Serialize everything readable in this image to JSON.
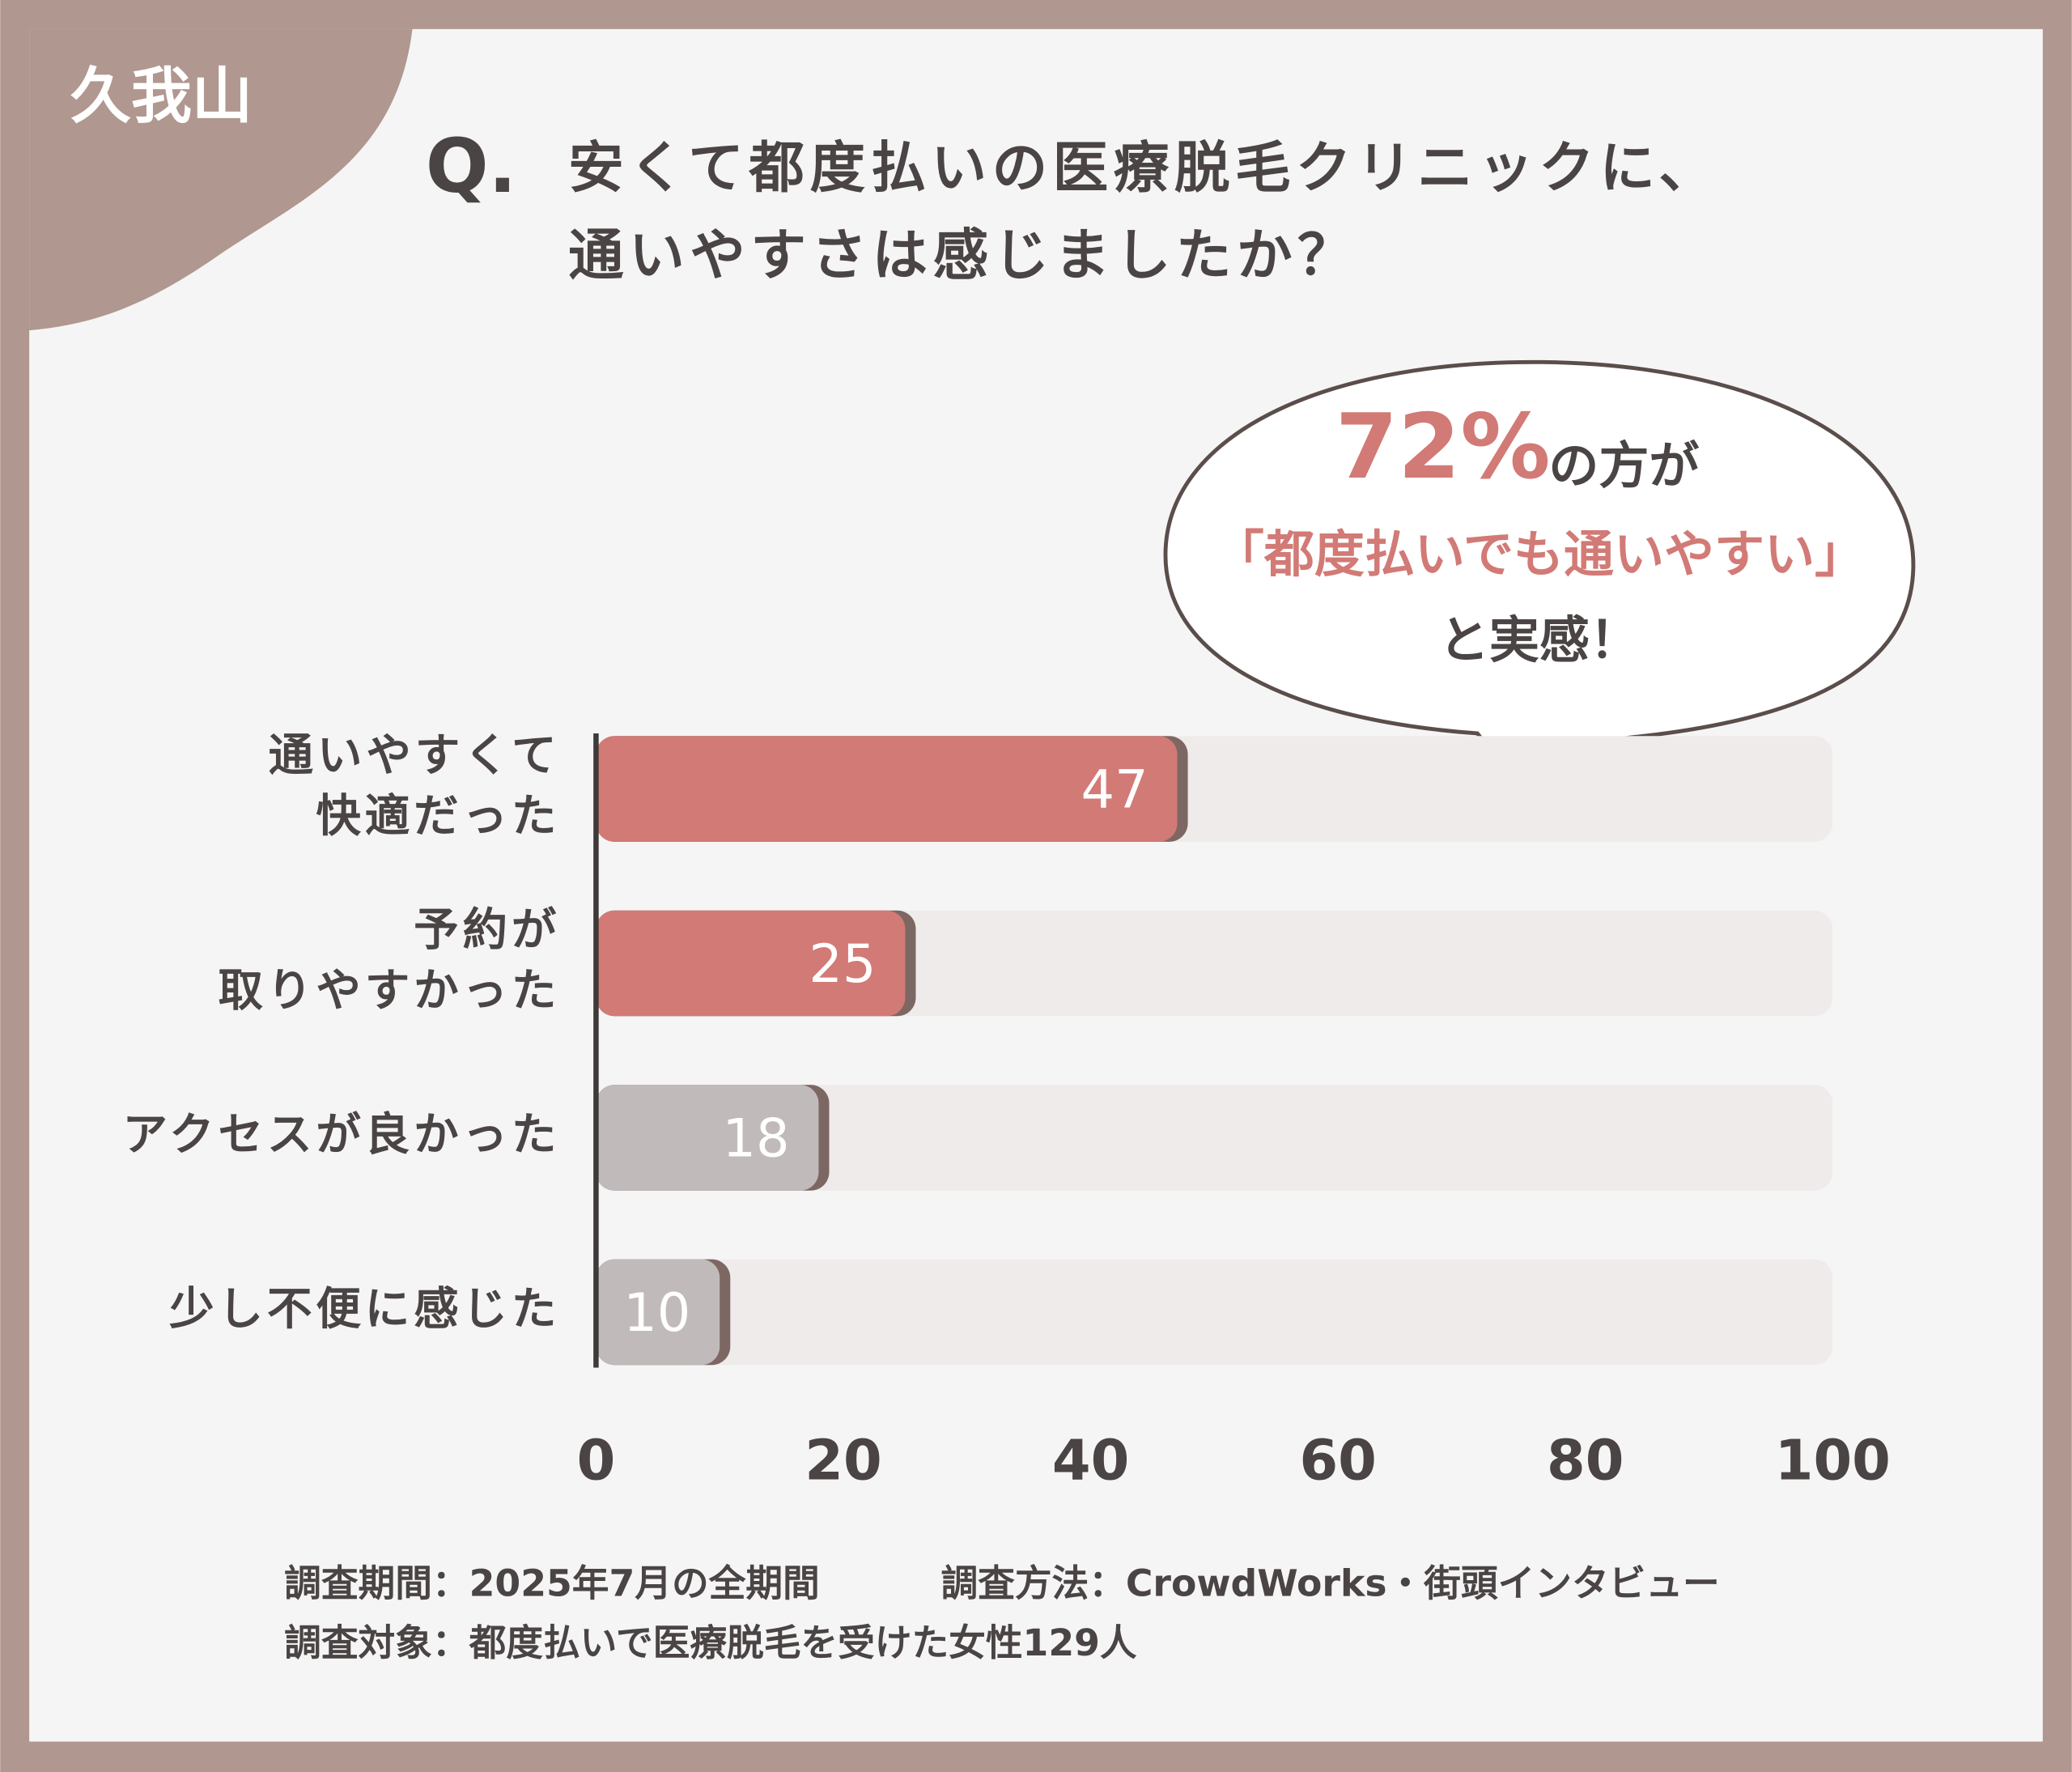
{
  "brand": "久我山",
  "chart_data": {
    "type": "hbar",
    "title_prefix": "Q.",
    "title": [
      "安くて都度払いの医療脱毛クリニックに、",
      "通いやすさは感じましたか？"
    ],
    "categories": [
      [
        "通いやすくて",
        "快適だった"
      ],
      [
        "予約が",
        "取りやすかった"
      ],
      [
        "アクセスが良かった"
      ],
      [
        "少し不便に感じた"
      ]
    ],
    "values": [
      47,
      25,
      18,
      10
    ],
    "colors": [
      "#d27a76",
      "#d27a76",
      "#c0bbba",
      "#c0bbba"
    ],
    "xlim": [
      0,
      100
    ],
    "xticks": [
      0,
      20,
      40,
      60,
      80,
      100
    ],
    "annotation": {
      "highlight": "72%",
      "text": "の方が",
      "quote": "「都度払いでも通いやすい」",
      "closing": "と実感！"
    }
  },
  "footnotes": [
    "調査期間：2025年7月の全期間",
    "調査方法：CrowdWorks・街頭インタビュー",
    "調査対象：都度払いで医療脱毛を受けた女性129人"
  ]
}
